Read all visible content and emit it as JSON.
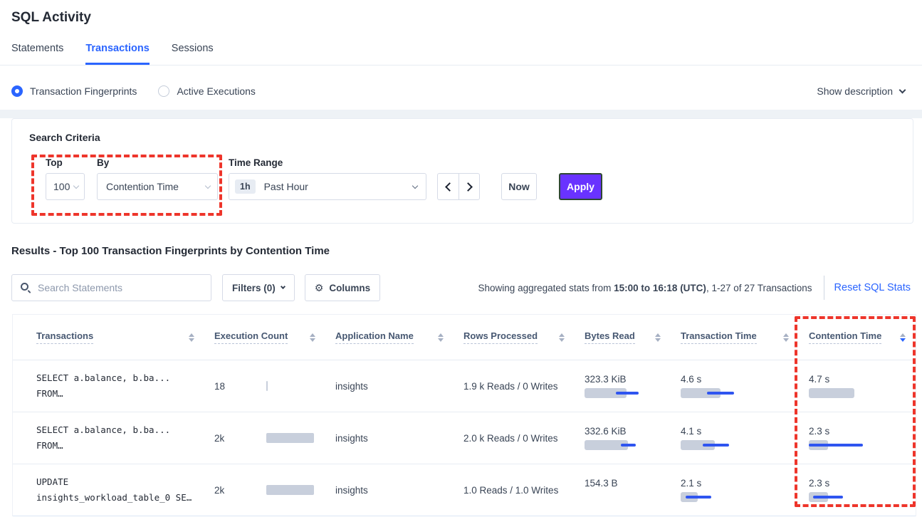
{
  "colors": {
    "accent": "#2b65ff",
    "purple": "#6933ff",
    "red": "#ee352b",
    "bar-gray": "#c8cfdc",
    "bar-blue": "#2f55f0"
  },
  "header": {
    "title": "SQL Activity"
  },
  "tabs": [
    {
      "label": "Statements"
    },
    {
      "label": "Transactions"
    },
    {
      "label": "Sessions"
    }
  ],
  "view_toggle": {
    "fingerprints_label": "Transaction Fingerprints",
    "active_label": "Active Executions",
    "show_description": "Show description"
  },
  "search_criteria": {
    "title": "Search Criteria",
    "top_label": "Top",
    "top_value": "100",
    "by_label": "By",
    "by_value": "Contention Time",
    "time_range_label": "Time Range",
    "time_range_badge": "1h",
    "time_range_value": "Past Hour",
    "now_label": "Now",
    "apply_label": "Apply"
  },
  "results": {
    "heading": "Results - Top 100 Transaction Fingerprints by Contention Time",
    "search_placeholder": "Search Statements",
    "filters_label": "Filters (0)",
    "columns_label": "Columns",
    "stats_prefix": "Showing aggregated stats from ",
    "stats_range": "15:00 to 16:18 (UTC)",
    "stats_suffix": ", 1-27 of 27 Transactions",
    "reset_label": "Reset SQL Stats"
  },
  "table": {
    "columns": [
      {
        "label": "Transactions",
        "sort": "none"
      },
      {
        "label": "Execution Count",
        "sort": "none"
      },
      {
        "label": "Application Name",
        "sort": "none"
      },
      {
        "label": "Rows Processed",
        "sort": "none"
      },
      {
        "label": "Bytes Read",
        "sort": "none"
      },
      {
        "label": "Transaction Time",
        "sort": "none"
      },
      {
        "label": "Contention Time",
        "sort": "desc"
      }
    ],
    "rows": [
      {
        "sql1": "SELECT a.balance, b.ba...",
        "sql2": "FROM…",
        "execution_count": "18",
        "execution_bar": {
          "bar": 2,
          "line": null
        },
        "application": "insights",
        "rows_processed": "1.9 k Reads / 0 Writes",
        "bytes_read": {
          "value": "323.3 KiB",
          "bar": 59,
          "line": [
            44,
            76
          ]
        },
        "transaction_time": {
          "value": "4.6 s",
          "bar": 56,
          "line": [
            37,
            75
          ]
        },
        "contention_time": {
          "value": "4.7 s",
          "bar": 64,
          "line": null
        }
      },
      {
        "sql1": "SELECT a.balance, b.ba...",
        "sql2": "FROM…",
        "execution_count": "2k",
        "execution_bar": {
          "bar": 67,
          "line": null
        },
        "application": "insights",
        "rows_processed": "2.0 k Reads / 0 Writes",
        "bytes_read": {
          "value": "332.6 KiB",
          "bar": 61,
          "line": [
            51,
            72
          ]
        },
        "transaction_time": {
          "value": "4.1 s",
          "bar": 48,
          "line": [
            31,
            68
          ]
        },
        "contention_time": {
          "value": "2.3 s",
          "bar": 27,
          "line": [
            0,
            76
          ]
        }
      },
      {
        "sql1": "UPDATE",
        "sql2": "insights_workload_table_0 SE…",
        "execution_count": "2k",
        "execution_bar": {
          "bar": 67,
          "line": null
        },
        "application": "insights",
        "rows_processed": "1.0 Reads / 1.0 Writes",
        "bytes_read": {
          "value": "154.3 B",
          "bar": null,
          "line": null
        },
        "transaction_time": {
          "value": "2.1 s",
          "bar": 24,
          "line": [
            7,
            43
          ]
        },
        "contention_time": {
          "value": "2.3 s",
          "bar": 27,
          "line": [
            6,
            48
          ]
        }
      }
    ]
  }
}
